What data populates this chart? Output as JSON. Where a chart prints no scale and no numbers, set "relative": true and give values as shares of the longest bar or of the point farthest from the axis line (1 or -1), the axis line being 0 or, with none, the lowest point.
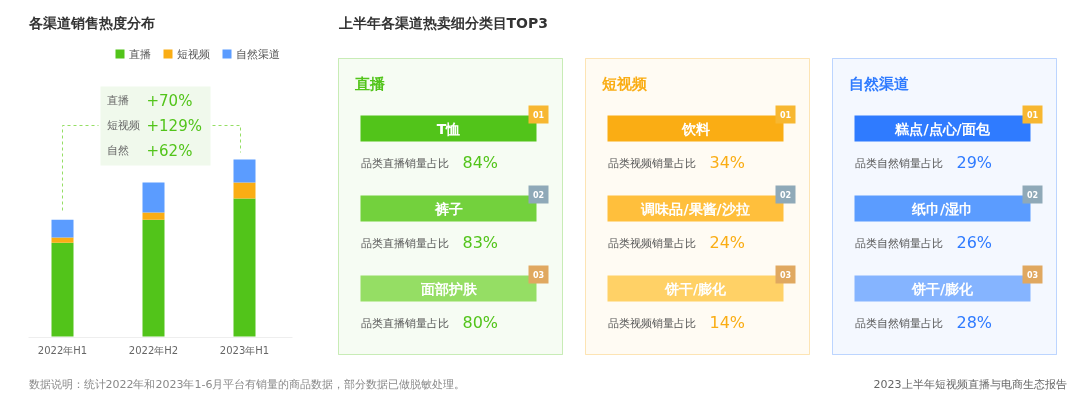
{
  "chart_data": [
    {
      "type": "bar",
      "title": "各渠道销售热度分布",
      "stacked": true,
      "relative": true,
      "legend": "top right",
      "grid": false,
      "categories": [
        "2022年H1",
        "2022年H2",
        "2023年H1"
      ],
      "series": [
        {
          "name": "直播",
          "color": "#52c41a",
          "values": [
            0.53,
            0.66,
            0.78
          ]
        },
        {
          "name": "短视频",
          "color": "#faad14",
          "values": [
            0.03,
            0.04,
            0.09
          ]
        },
        {
          "name": "自然渠道",
          "color": "#5b9cff",
          "values": [
            0.1,
            0.17,
            0.13
          ]
        }
      ],
      "annotations": [
        "直播 +70%",
        "短视频 +129%",
        "自然 +62%",
        "数据说明：统计2022年和2023年1-6月平台有销量的商品数据，部分数据已做脱敏处理。",
        "2023上半年短视频直播与电商生态报告"
      ]
    },
    {
      "type": "other",
      "title": "上半年各渠道热卖细分类目TOP3",
      "subtitle": "直播",
      "color": "#52c41a",
      "categories": [
        "T恤",
        "裤子",
        "面部护肤"
      ],
      "colors": [
        "#52c41a",
        "#73d13d",
        "#95de64"
      ],
      "annotations": [
        "01",
        "02",
        "03",
        "品类直播销量占比",
        "品类直播销量占比",
        "品类直播销量占比",
        "84%",
        "83%",
        "80%"
      ]
    },
    {
      "type": "other",
      "subtitle": "短视频",
      "color": "#faad14",
      "categories": [
        "饮料",
        "调味品/果酱/沙拉",
        "饼干/膨化"
      ],
      "colors": [
        "#faad14",
        "#ffbf3c",
        "#ffd166"
      ],
      "annotations": [
        "01",
        "02",
        "03",
        "品类视频销量占比",
        "品类视频销量占比",
        "品类视频销量占比",
        "34%",
        "24%",
        "14%"
      ]
    },
    {
      "type": "other",
      "subtitle": "自然渠道",
      "color": "#2f7bff",
      "categories": [
        "糕点/点心/面包",
        "纸巾/湿巾",
        "饼干/膨化"
      ],
      "colors": [
        "#2f7bff",
        "#5b9cff",
        "#85b4ff"
      ],
      "annotations": [
        "01",
        "02",
        "03",
        "品类自然销量占比",
        "品类自然销量占比",
        "品类自然销量占比",
        "29%",
        "26%",
        "28%"
      ]
    }
  ]
}
